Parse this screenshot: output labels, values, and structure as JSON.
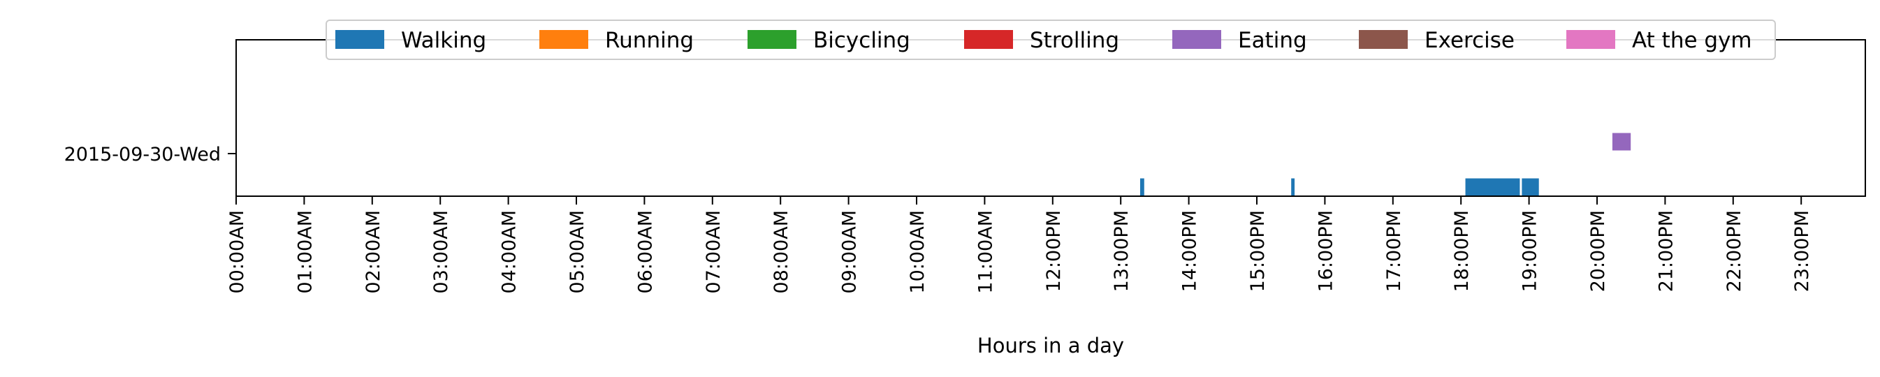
{
  "chart_data": {
    "type": "timeline",
    "xlabel": "Hours in a day",
    "ylabel": "",
    "xlim": [
      0,
      24
    ],
    "y_categories": [
      "2015-09-30-Wed"
    ],
    "x_tick_labels": [
      "00:00AM",
      "01:00AM",
      "02:00AM",
      "03:00AM",
      "04:00AM",
      "05:00AM",
      "06:00AM",
      "07:00AM",
      "08:00AM",
      "09:00AM",
      "10:00AM",
      "11:00AM",
      "12:00PM",
      "13:00PM",
      "14:00PM",
      "15:00PM",
      "16:00PM",
      "17:00PM",
      "18:00PM",
      "19:00PM",
      "20:00PM",
      "21:00PM",
      "22:00PM",
      "23:00PM"
    ],
    "legend_position": "top-center",
    "series": [
      {
        "name": "Walking",
        "color": "#1f77b4",
        "intervals": [
          {
            "day": "2015-09-30-Wed",
            "start": 13.28,
            "end": 13.35
          },
          {
            "day": "2015-09-30-Wed",
            "start": 15.5,
            "end": 15.56
          },
          {
            "day": "2015-09-30-Wed",
            "start": 18.06,
            "end": 18.87
          },
          {
            "day": "2015-09-30-Wed",
            "start": 18.89,
            "end": 19.15
          }
        ]
      },
      {
        "name": "Running",
        "color": "#ff7f0e",
        "intervals": []
      },
      {
        "name": "Bicycling",
        "color": "#2ca02c",
        "intervals": []
      },
      {
        "name": "Strolling",
        "color": "#d62728",
        "intervals": []
      },
      {
        "name": "Eating",
        "color": "#9467bd",
        "intervals": [
          {
            "day": "2015-09-30-Wed",
            "start": 20.22,
            "end": 20.5
          }
        ]
      },
      {
        "name": "Exercise",
        "color": "#8c564b",
        "intervals": []
      },
      {
        "name": "At the gym",
        "color": "#e377c2",
        "intervals": []
      }
    ]
  }
}
